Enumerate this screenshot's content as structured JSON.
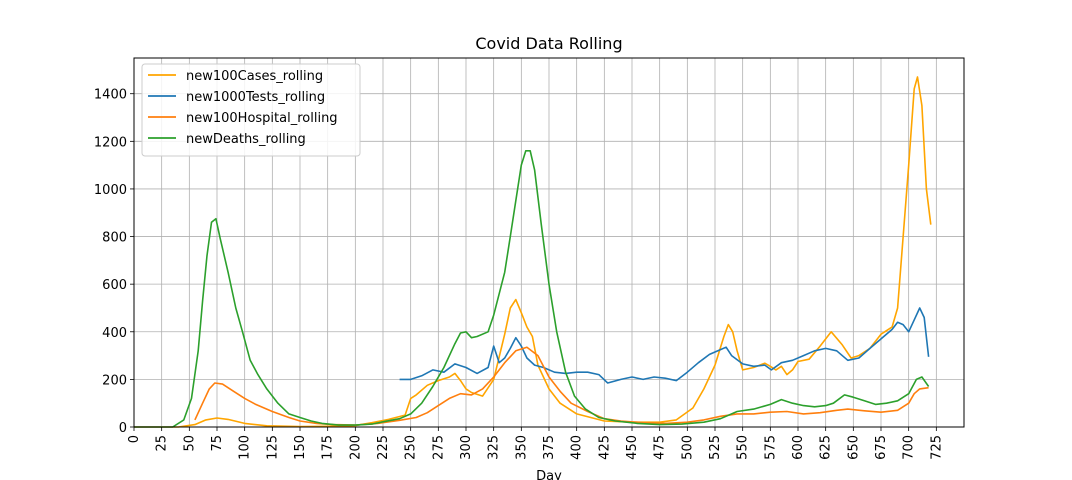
{
  "chart_data": {
    "type": "line",
    "title": "Covid Data Rolling",
    "xlabel": "Day",
    "ylabel": "",
    "xlim": [
      0,
      750
    ],
    "ylim": [
      0,
      1550
    ],
    "x_ticks": [
      0,
      25,
      50,
      75,
      100,
      125,
      150,
      175,
      200,
      225,
      250,
      275,
      300,
      325,
      350,
      375,
      400,
      425,
      450,
      475,
      500,
      525,
      550,
      575,
      600,
      625,
      650,
      675,
      700,
      725
    ],
    "y_ticks": [
      0,
      200,
      400,
      600,
      800,
      1000,
      1200,
      1400
    ],
    "grid": true,
    "legend_position": "top-left",
    "series": [
      {
        "name": "new100Cases_rolling",
        "color": "#ffa500",
        "points": [
          [
            0,
            0
          ],
          [
            40,
            0
          ],
          [
            55,
            10
          ],
          [
            65,
            30
          ],
          [
            75,
            38
          ],
          [
            85,
            32
          ],
          [
            100,
            15
          ],
          [
            120,
            5
          ],
          [
            150,
            2
          ],
          [
            175,
            3
          ],
          [
            200,
            6
          ],
          [
            215,
            18
          ],
          [
            230,
            32
          ],
          [
            245,
            50
          ],
          [
            250,
            120
          ],
          [
            255,
            135
          ],
          [
            265,
            175
          ],
          [
            275,
            195
          ],
          [
            285,
            210
          ],
          [
            290,
            225
          ],
          [
            295,
            195
          ],
          [
            300,
            160
          ],
          [
            305,
            145
          ],
          [
            315,
            130
          ],
          [
            325,
            200
          ],
          [
            335,
            390
          ],
          [
            340,
            500
          ],
          [
            345,
            535
          ],
          [
            350,
            480
          ],
          [
            355,
            420
          ],
          [
            360,
            380
          ],
          [
            365,
            260
          ],
          [
            375,
            160
          ],
          [
            385,
            100
          ],
          [
            400,
            55
          ],
          [
            425,
            25
          ],
          [
            450,
            20
          ],
          [
            475,
            20
          ],
          [
            490,
            30
          ],
          [
            505,
            80
          ],
          [
            515,
            160
          ],
          [
            525,
            260
          ],
          [
            533,
            380
          ],
          [
            537,
            430
          ],
          [
            541,
            400
          ],
          [
            545,
            320
          ],
          [
            550,
            240
          ],
          [
            560,
            250
          ],
          [
            570,
            268
          ],
          [
            575,
            255
          ],
          [
            580,
            240
          ],
          [
            585,
            255
          ],
          [
            590,
            220
          ],
          [
            595,
            240
          ],
          [
            600,
            275
          ],
          [
            610,
            285
          ],
          [
            620,
            340
          ],
          [
            630,
            400
          ],
          [
            640,
            345
          ],
          [
            648,
            290
          ],
          [
            655,
            300
          ],
          [
            665,
            330
          ],
          [
            675,
            390
          ],
          [
            685,
            420
          ],
          [
            690,
            500
          ],
          [
            700,
            1100
          ],
          [
            705,
            1420
          ],
          [
            708,
            1470
          ],
          [
            712,
            1350
          ],
          [
            716,
            1000
          ],
          [
            720,
            850
          ]
        ]
      },
      {
        "name": "new1000Tests_rolling",
        "color": "#1f77b4",
        "points": [
          [
            240,
            200
          ],
          [
            250,
            200
          ],
          [
            260,
            215
          ],
          [
            270,
            240
          ],
          [
            280,
            230
          ],
          [
            290,
            265
          ],
          [
            300,
            250
          ],
          [
            310,
            225
          ],
          [
            320,
            250
          ],
          [
            325,
            340
          ],
          [
            330,
            270
          ],
          [
            335,
            290
          ],
          [
            340,
            330
          ],
          [
            345,
            375
          ],
          [
            350,
            340
          ],
          [
            355,
            290
          ],
          [
            362,
            260
          ],
          [
            370,
            250
          ],
          [
            380,
            230
          ],
          [
            390,
            225
          ],
          [
            400,
            230
          ],
          [
            410,
            230
          ],
          [
            420,
            220
          ],
          [
            428,
            185
          ],
          [
            440,
            200
          ],
          [
            450,
            210
          ],
          [
            460,
            200
          ],
          [
            470,
            210
          ],
          [
            480,
            205
          ],
          [
            490,
            195
          ],
          [
            500,
            230
          ],
          [
            510,
            270
          ],
          [
            520,
            305
          ],
          [
            530,
            325
          ],
          [
            535,
            335
          ],
          [
            540,
            300
          ],
          [
            550,
            265
          ],
          [
            560,
            255
          ],
          [
            570,
            260
          ],
          [
            576,
            240
          ],
          [
            585,
            270
          ],
          [
            595,
            280
          ],
          [
            605,
            300
          ],
          [
            615,
            320
          ],
          [
            625,
            330
          ],
          [
            635,
            320
          ],
          [
            645,
            280
          ],
          [
            655,
            290
          ],
          [
            665,
            330
          ],
          [
            675,
            370
          ],
          [
            685,
            410
          ],
          [
            690,
            440
          ],
          [
            695,
            430
          ],
          [
            700,
            400
          ],
          [
            705,
            450
          ],
          [
            710,
            500
          ],
          [
            714,
            460
          ],
          [
            718,
            295
          ]
        ]
      },
      {
        "name": "new100Hospital_rolling",
        "color": "#ff7f0e",
        "points": [
          [
            55,
            30
          ],
          [
            62,
            100
          ],
          [
            68,
            160
          ],
          [
            73,
            185
          ],
          [
            80,
            180
          ],
          [
            90,
            150
          ],
          [
            100,
            120
          ],
          [
            110,
            95
          ],
          [
            125,
            65
          ],
          [
            140,
            40
          ],
          [
            150,
            25
          ],
          [
            165,
            15
          ],
          [
            180,
            10
          ],
          [
            200,
            8
          ],
          [
            220,
            15
          ],
          [
            240,
            28
          ],
          [
            255,
            40
          ],
          [
            265,
            60
          ],
          [
            275,
            90
          ],
          [
            285,
            120
          ],
          [
            295,
            140
          ],
          [
            305,
            135
          ],
          [
            315,
            160
          ],
          [
            325,
            210
          ],
          [
            335,
            270
          ],
          [
            345,
            320
          ],
          [
            355,
            335
          ],
          [
            365,
            300
          ],
          [
            375,
            210
          ],
          [
            385,
            150
          ],
          [
            395,
            100
          ],
          [
            410,
            65
          ],
          [
            425,
            35
          ],
          [
            440,
            25
          ],
          [
            460,
            18
          ],
          [
            480,
            15
          ],
          [
            500,
            20
          ],
          [
            515,
            30
          ],
          [
            530,
            45
          ],
          [
            545,
            55
          ],
          [
            560,
            55
          ],
          [
            575,
            62
          ],
          [
            590,
            65
          ],
          [
            605,
            55
          ],
          [
            620,
            60
          ],
          [
            635,
            70
          ],
          [
            645,
            75
          ],
          [
            660,
            68
          ],
          [
            675,
            62
          ],
          [
            690,
            70
          ],
          [
            700,
            100
          ],
          [
            705,
            140
          ],
          [
            710,
            160
          ],
          [
            718,
            165
          ]
        ]
      },
      {
        "name": "newDeaths_rolling",
        "color": "#2ca02c",
        "points": [
          [
            0,
            0
          ],
          [
            35,
            0
          ],
          [
            45,
            30
          ],
          [
            52,
            120
          ],
          [
            58,
            320
          ],
          [
            62,
            530
          ],
          [
            66,
            720
          ],
          [
            70,
            860
          ],
          [
            74,
            875
          ],
          [
            78,
            790
          ],
          [
            85,
            650
          ],
          [
            92,
            500
          ],
          [
            98,
            400
          ],
          [
            105,
            280
          ],
          [
            112,
            220
          ],
          [
            120,
            160
          ],
          [
            130,
            100
          ],
          [
            140,
            55
          ],
          [
            150,
            40
          ],
          [
            160,
            25
          ],
          [
            170,
            15
          ],
          [
            185,
            8
          ],
          [
            200,
            8
          ],
          [
            215,
            12
          ],
          [
            225,
            22
          ],
          [
            240,
            35
          ],
          [
            250,
            55
          ],
          [
            260,
            100
          ],
          [
            270,
            170
          ],
          [
            280,
            250
          ],
          [
            290,
            350
          ],
          [
            295,
            395
          ],
          [
            300,
            400
          ],
          [
            305,
            375
          ],
          [
            310,
            380
          ],
          [
            320,
            400
          ],
          [
            325,
            470
          ],
          [
            330,
            560
          ],
          [
            335,
            650
          ],
          [
            340,
            800
          ],
          [
            345,
            950
          ],
          [
            350,
            1100
          ],
          [
            354,
            1160
          ],
          [
            358,
            1160
          ],
          [
            362,
            1080
          ],
          [
            368,
            850
          ],
          [
            375,
            600
          ],
          [
            382,
            400
          ],
          [
            390,
            230
          ],
          [
            398,
            130
          ],
          [
            408,
            75
          ],
          [
            420,
            40
          ],
          [
            435,
            25
          ],
          [
            455,
            15
          ],
          [
            475,
            10
          ],
          [
            495,
            12
          ],
          [
            515,
            20
          ],
          [
            530,
            35
          ],
          [
            545,
            65
          ],
          [
            560,
            75
          ],
          [
            575,
            95
          ],
          [
            585,
            115
          ],
          [
            595,
            100
          ],
          [
            605,
            90
          ],
          [
            615,
            85
          ],
          [
            625,
            90
          ],
          [
            632,
            100
          ],
          [
            642,
            135
          ],
          [
            650,
            125
          ],
          [
            660,
            110
          ],
          [
            670,
            95
          ],
          [
            680,
            100
          ],
          [
            690,
            110
          ],
          [
            700,
            140
          ],
          [
            707,
            200
          ],
          [
            712,
            210
          ],
          [
            718,
            170
          ]
        ]
      }
    ]
  }
}
